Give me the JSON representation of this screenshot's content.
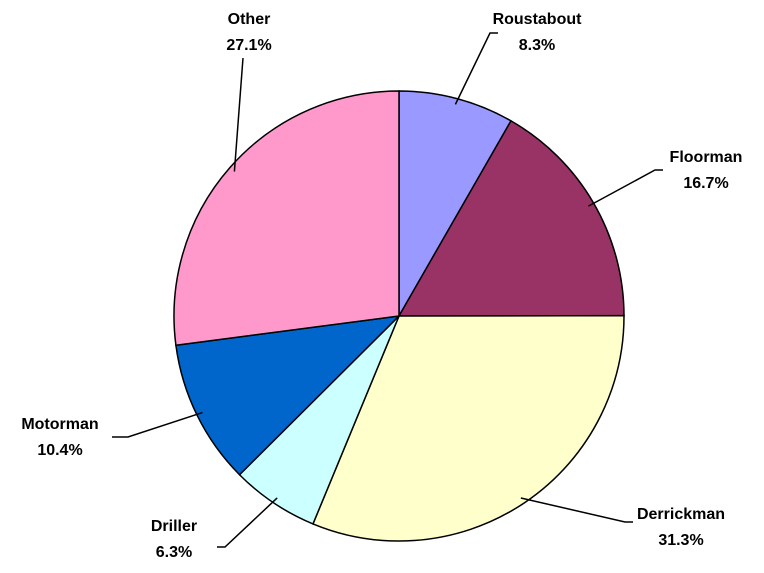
{
  "chart_data": {
    "type": "pie",
    "categories": [
      "Roustabout",
      "Floorman",
      "Derrickman",
      "Driller",
      "Motorman",
      "Other"
    ],
    "values": [
      8.3,
      16.7,
      31.3,
      6.3,
      10.4,
      27.1
    ],
    "value_labels": [
      "8.3%",
      "16.7%",
      "31.3%",
      "6.3%",
      "10.4%",
      "27.1%"
    ],
    "colors": [
      "#9999ff",
      "#993366",
      "#ffffcc",
      "#ccffff",
      "#0066cc",
      "#ff99cc"
    ]
  }
}
